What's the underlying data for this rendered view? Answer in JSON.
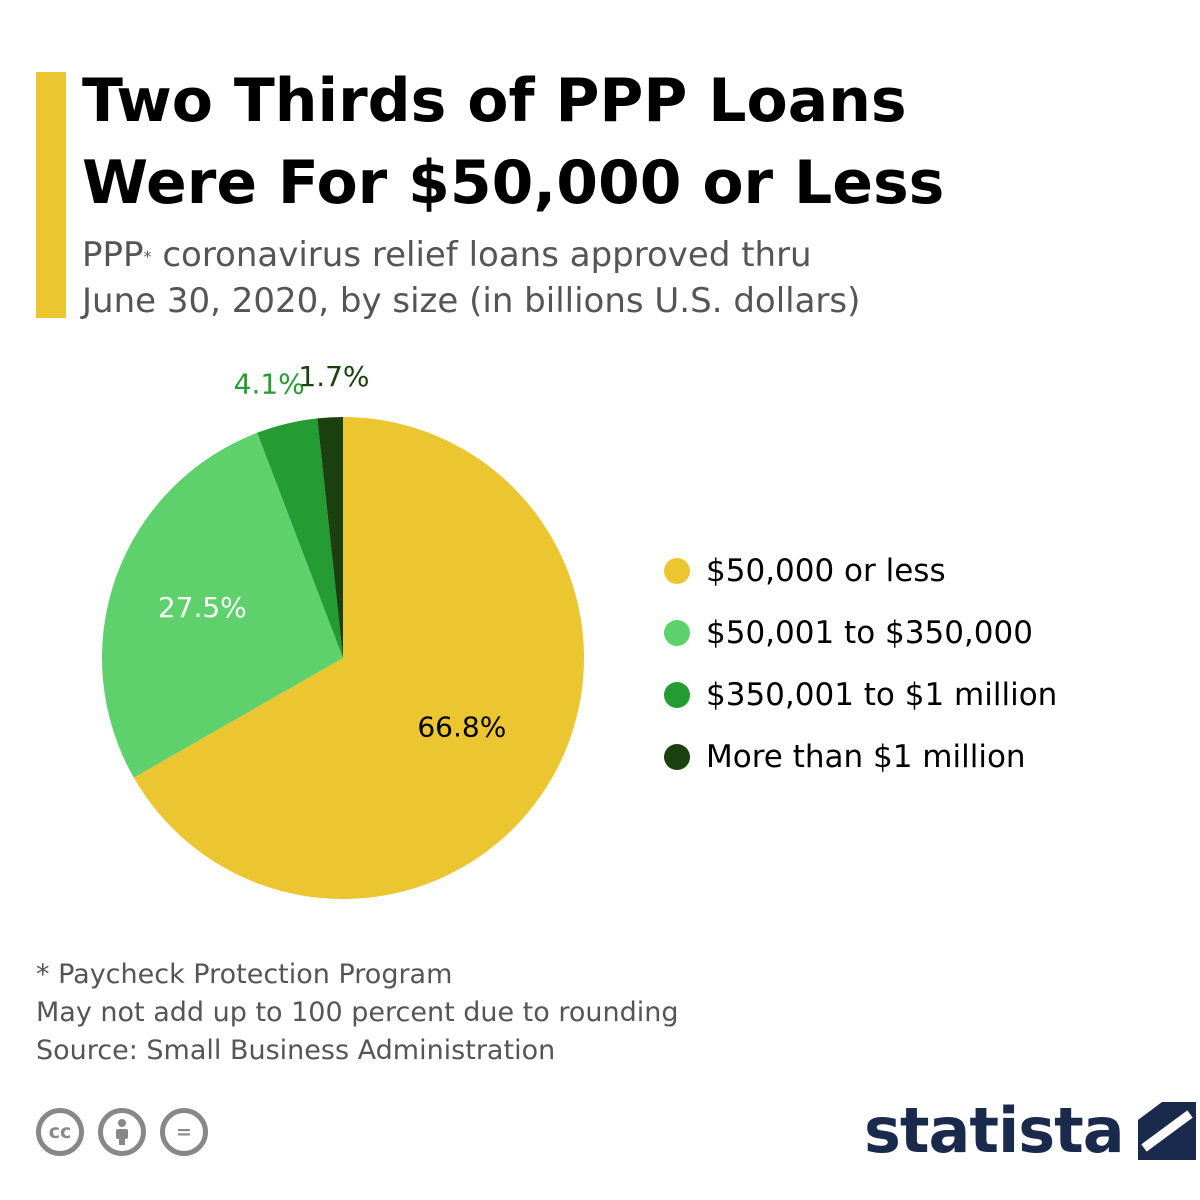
{
  "title_line1": "Two Thirds of PPP Loans",
  "title_line2": "Were For $50,000 or Less",
  "subtitle_prefix": "PPP",
  "subtitle_asterisk": "*",
  "subtitle_line1_rest": " coronavirus relief loans approved thru",
  "subtitle_line2": "June 30, 2020, by size (in billions U.S. dollars)",
  "chart_data": {
    "type": "pie",
    "title": "Two Thirds of PPP Loans Were For $50,000 or Less",
    "subtitle": "PPP* coronavirus relief loans approved thru June 30, 2020, by size (in billions U.S. dollars)",
    "legend_position": "right",
    "slices": [
      {
        "name": "$50,000 or less",
        "value": 66.8,
        "label": "66.8%",
        "color": "#ebc631",
        "label_color": "#000000"
      },
      {
        "name": "$50,001 to $350,000",
        "value": 27.5,
        "label": "27.5%",
        "color": "#5ed06c",
        "label_color": "#ffffff"
      },
      {
        "name": "$350,001 to $1 million",
        "value": 4.1,
        "label": "4.1%",
        "color": "#259b33",
        "label_color": "#259b33"
      },
      {
        "name": "More than $1 million",
        "value": 1.7,
        "label": "1.7%",
        "color": "#1b4110",
        "label_color": "#1b4110"
      }
    ]
  },
  "footnotes": {
    "line1": "* Paycheck Protection Program",
    "line2": "May not add up to 100 percent due to rounding",
    "line3": "Source: Small Business Administration"
  },
  "license_icons": [
    "cc-icon",
    "attribution-icon",
    "no-derivatives-icon"
  ],
  "license_glyphs": {
    "cc": "cc",
    "nd": "="
  },
  "brand": {
    "name": "statista",
    "logo": "statista-logo-icon"
  }
}
